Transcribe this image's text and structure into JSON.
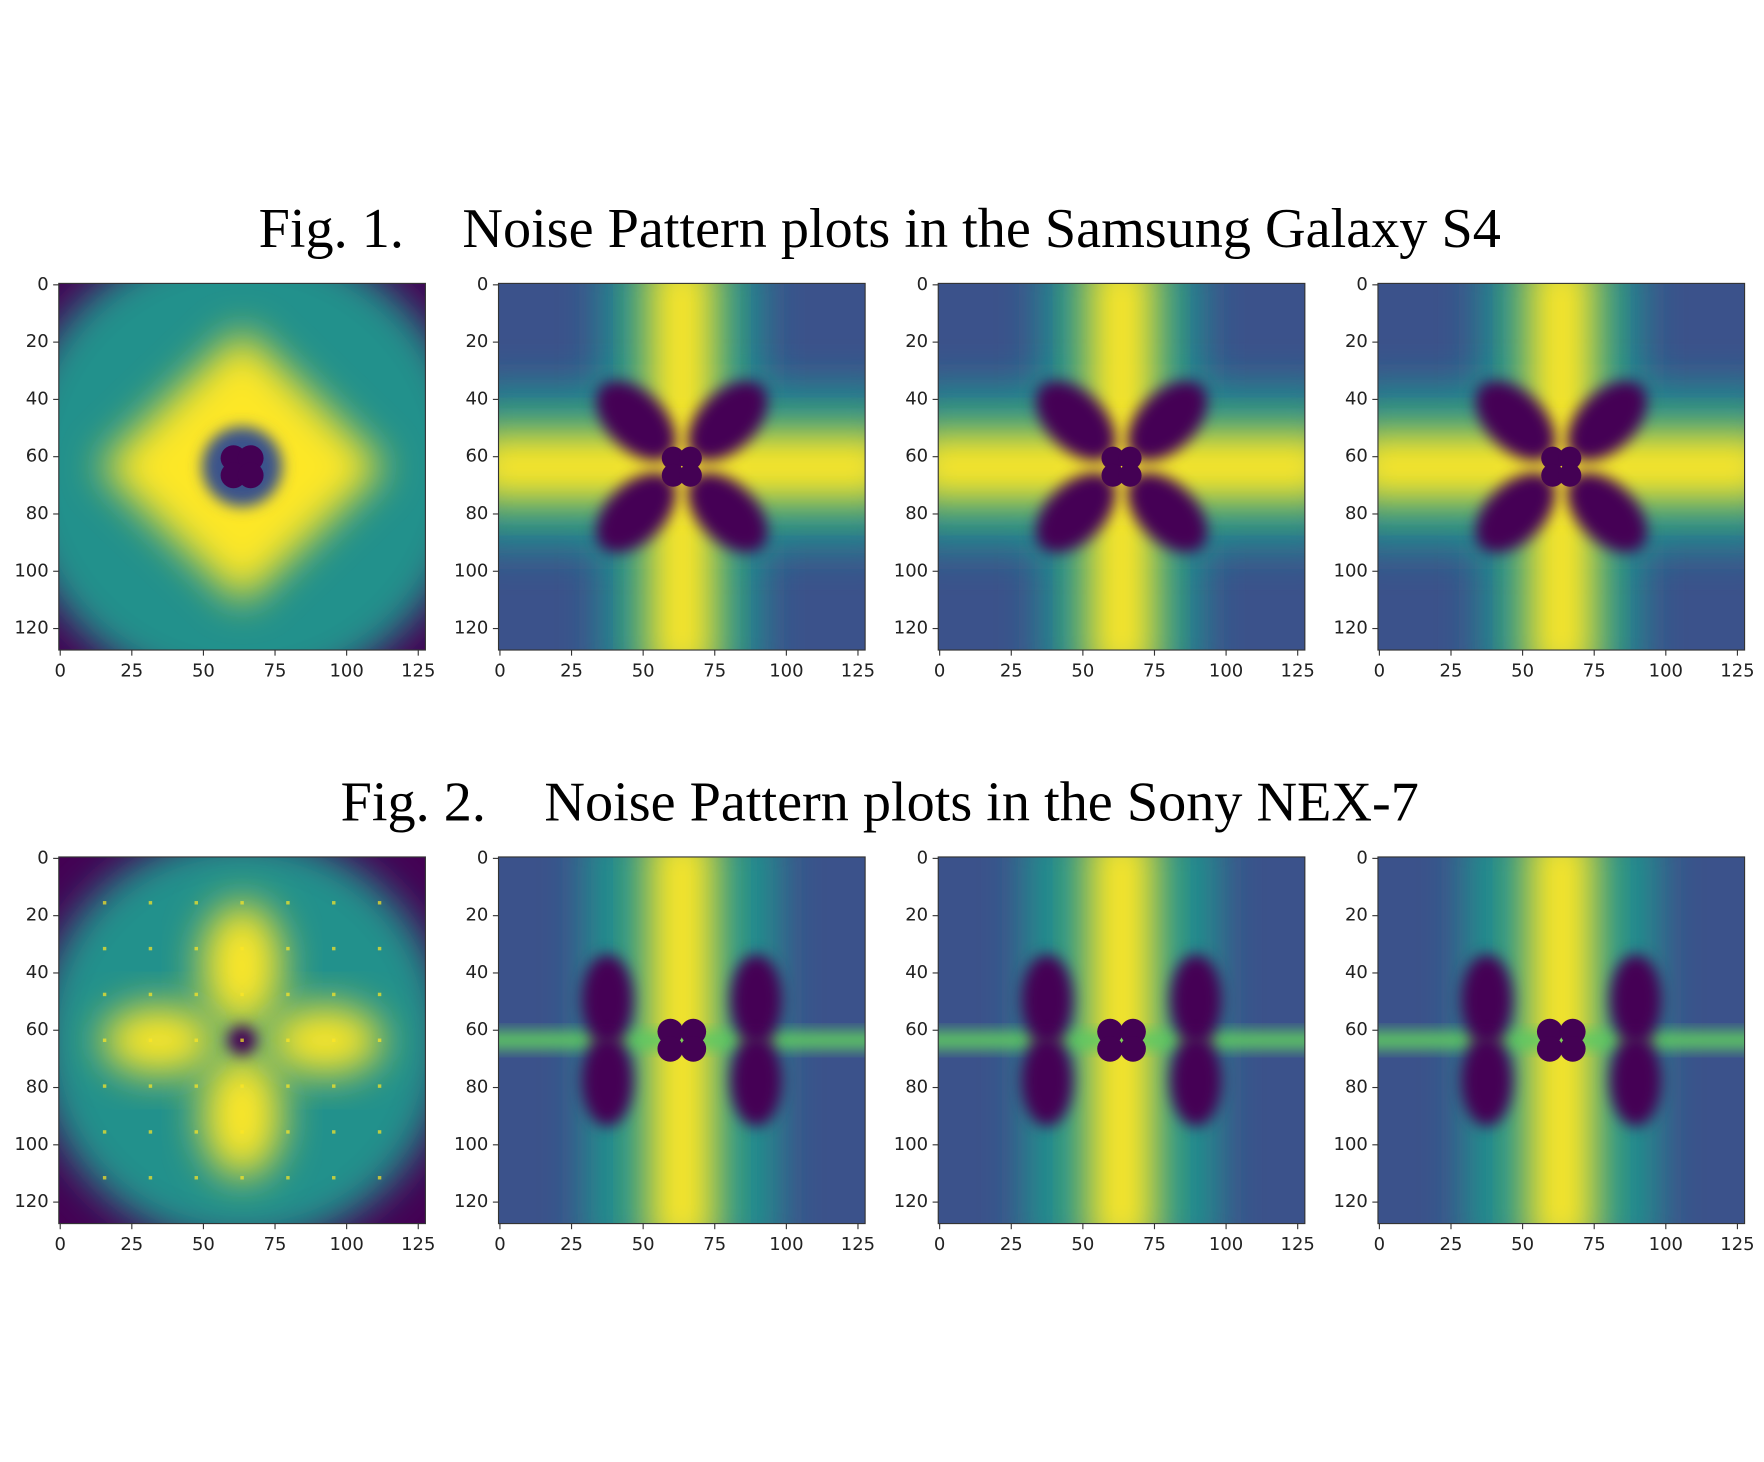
{
  "figures": [
    {
      "label": "Fig. 1.",
      "caption": "Noise Pattern plots in the Samsung Galaxy S4",
      "panels": [
        {
          "type": "heatmap",
          "xlim": [
            -0.5,
            127.5
          ],
          "ylim": [
            127.5,
            -0.5
          ],
          "xticks": [
            0,
            25,
            50,
            75,
            100,
            125
          ],
          "yticks": [
            0,
            20,
            40,
            60,
            80,
            100,
            120
          ]
        },
        {
          "type": "heatmap",
          "xlim": [
            -0.5,
            127.5
          ],
          "ylim": [
            127.5,
            -0.5
          ],
          "xticks": [
            0,
            25,
            50,
            75,
            100,
            125
          ],
          "yticks": [
            0,
            20,
            40,
            60,
            80,
            100,
            120
          ]
        },
        {
          "type": "heatmap",
          "xlim": [
            -0.5,
            127.5
          ],
          "ylim": [
            127.5,
            -0.5
          ],
          "xticks": [
            0,
            25,
            50,
            75,
            100,
            125
          ],
          "yticks": [
            0,
            20,
            40,
            60,
            80,
            100,
            120
          ]
        },
        {
          "type": "heatmap",
          "xlim": [
            -0.5,
            127.5
          ],
          "ylim": [
            127.5,
            -0.5
          ],
          "xticks": [
            0,
            25,
            50,
            75,
            100,
            125
          ],
          "yticks": [
            0,
            20,
            40,
            60,
            80,
            100,
            120
          ]
        }
      ]
    },
    {
      "label": "Fig. 2.",
      "caption": "Noise Pattern plots in the Sony NEX-7",
      "panels": [
        {
          "type": "heatmap",
          "xlim": [
            -0.5,
            127.5
          ],
          "ylim": [
            127.5,
            -0.5
          ],
          "xticks": [
            0,
            25,
            50,
            75,
            100,
            125
          ],
          "yticks": [
            0,
            20,
            40,
            60,
            80,
            100,
            120
          ]
        },
        {
          "type": "heatmap",
          "xlim": [
            -0.5,
            127.5
          ],
          "ylim": [
            127.5,
            -0.5
          ],
          "xticks": [
            0,
            25,
            50,
            75,
            100,
            125
          ],
          "yticks": [
            0,
            20,
            40,
            60,
            80,
            100,
            120
          ]
        },
        {
          "type": "heatmap",
          "xlim": [
            -0.5,
            127.5
          ],
          "ylim": [
            127.5,
            -0.5
          ],
          "xticks": [
            0,
            25,
            50,
            75,
            100,
            125
          ],
          "yticks": [
            0,
            20,
            40,
            60,
            80,
            100,
            120
          ]
        },
        {
          "type": "heatmap",
          "xlim": [
            -0.5,
            127.5
          ],
          "ylim": [
            127.5,
            -0.5
          ],
          "xticks": [
            0,
            25,
            50,
            75,
            100,
            125
          ],
          "yticks": [
            0,
            20,
            40,
            60,
            80,
            100,
            120
          ]
        }
      ]
    }
  ]
}
